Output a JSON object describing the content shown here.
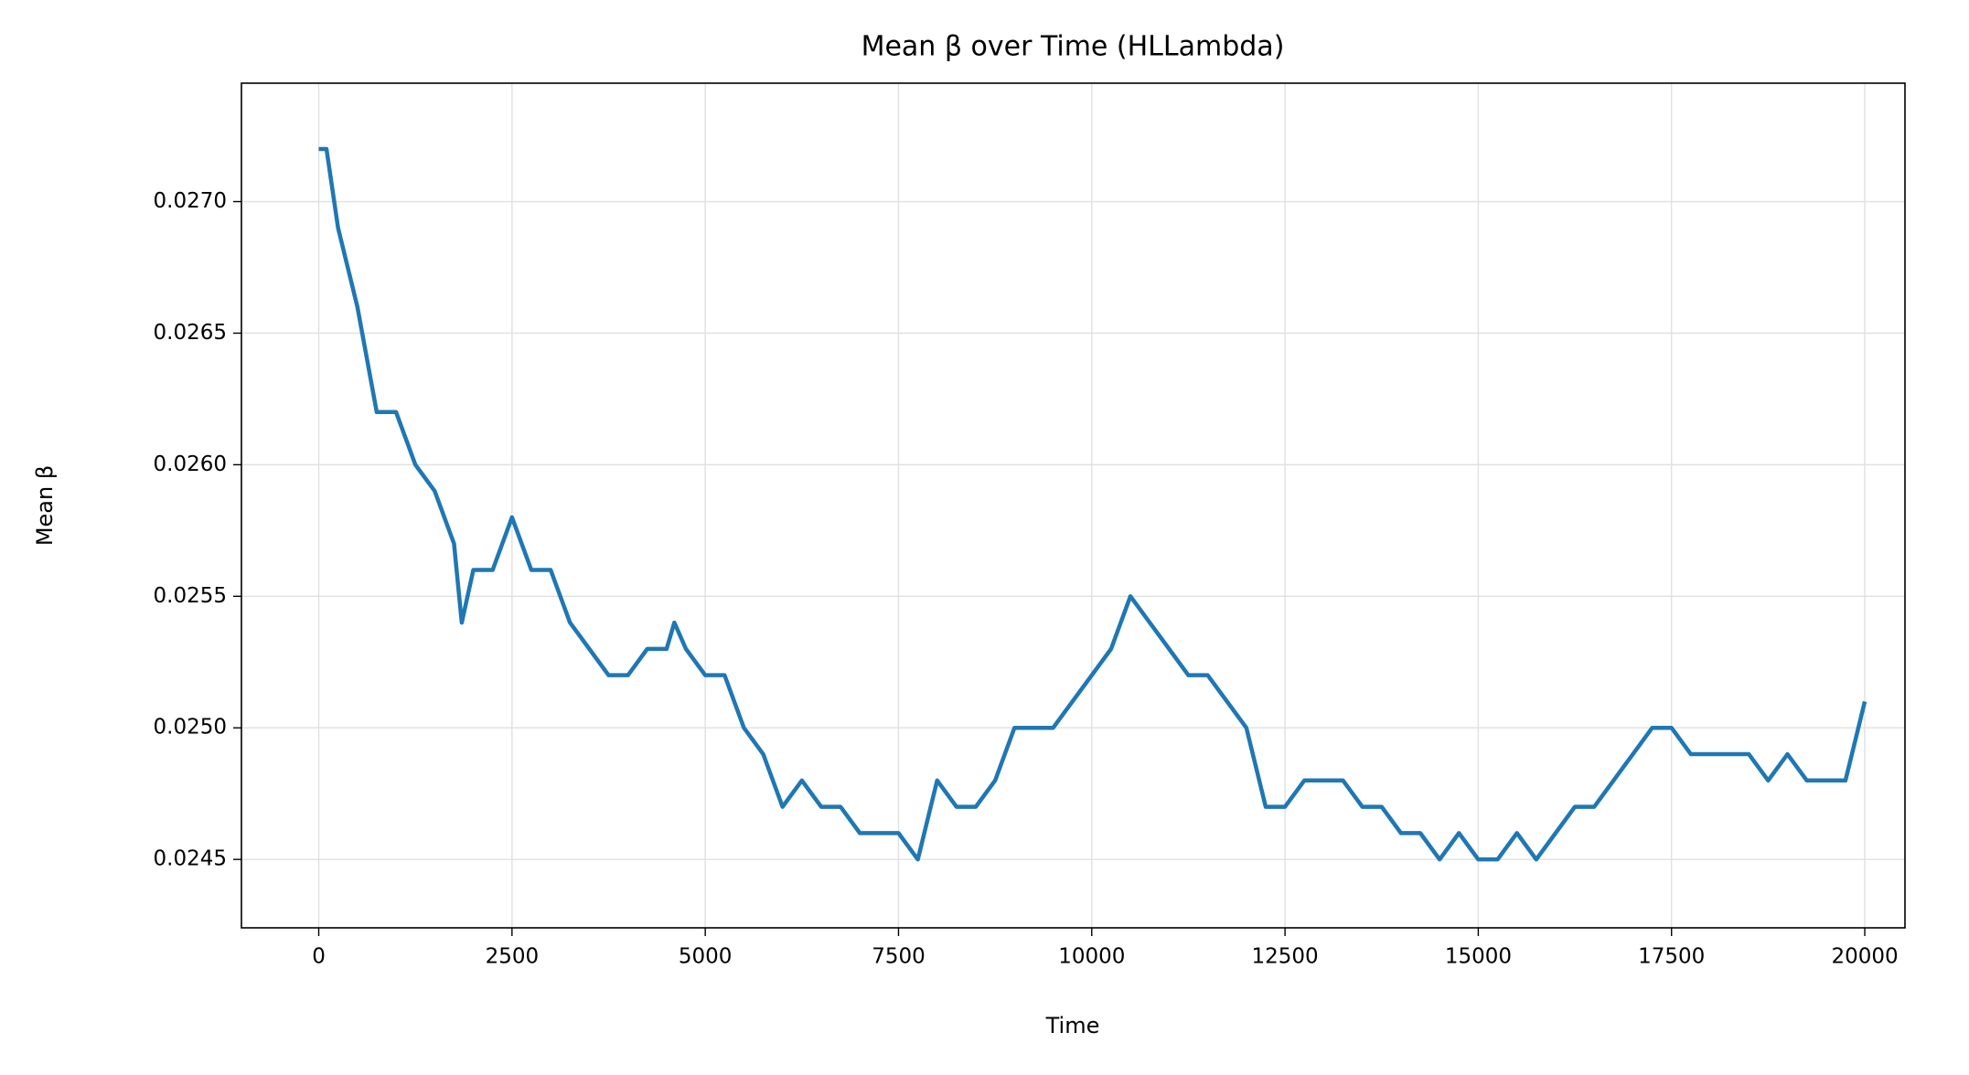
{
  "chart_data": {
    "type": "line",
    "title": "Mean β over Time (HLLambda)",
    "x_label": "Time",
    "y_label": "Mean β",
    "x": [
      0,
      100,
      250,
      500,
      750,
      1000,
      1250,
      1500,
      1750,
      1850,
      2000,
      2250,
      2500,
      2750,
      3000,
      3250,
      3500,
      3750,
      4000,
      4250,
      4500,
      4600,
      4750,
      5000,
      5250,
      5500,
      5750,
      6000,
      6250,
      6500,
      6750,
      7000,
      7250,
      7500,
      7750,
      8000,
      8250,
      8500,
      8750,
      9000,
      9250,
      9500,
      9750,
      10000,
      10250,
      10500,
      10750,
      11000,
      11250,
      11500,
      11750,
      12000,
      12250,
      12500,
      12750,
      13000,
      13250,
      13500,
      13750,
      14000,
      14250,
      14500,
      14750,
      15000,
      15250,
      15500,
      15750,
      16000,
      16250,
      16500,
      16750,
      17000,
      17250,
      17500,
      17750,
      18000,
      18250,
      18500,
      18750,
      19000,
      19250,
      19500,
      19750,
      20000
    ],
    "series": [
      {
        "name": "Mean β",
        "color": "#1f77b4",
        "values": [
          0.0272,
          0.0272,
          0.0269,
          0.0266,
          0.0262,
          0.0262,
          0.026,
          0.0259,
          0.0257,
          0.0254,
          0.0256,
          0.0256,
          0.0258,
          0.0256,
          0.0256,
          0.0254,
          0.0253,
          0.0252,
          0.0252,
          0.0253,
          0.0253,
          0.0254,
          0.0253,
          0.0252,
          0.0252,
          0.025,
          0.0249,
          0.0247,
          0.0248,
          0.0247,
          0.0247,
          0.0246,
          0.0246,
          0.0246,
          0.0245,
          0.0248,
          0.0247,
          0.0247,
          0.0248,
          0.025,
          0.025,
          0.025,
          0.0251,
          0.0252,
          0.0253,
          0.0255,
          0.0254,
          0.0253,
          0.0252,
          0.0252,
          0.0251,
          0.025,
          0.0247,
          0.0247,
          0.0248,
          0.0248,
          0.0248,
          0.0247,
          0.0247,
          0.0246,
          0.0246,
          0.0245,
          0.0246,
          0.0245,
          0.0245,
          0.0246,
          0.0245,
          0.0246,
          0.0247,
          0.0247,
          0.0248,
          0.0249,
          0.025,
          0.025,
          0.0249,
          0.0249,
          0.0249,
          0.0249,
          0.0248,
          0.0249,
          0.0248,
          0.0248,
          0.0248,
          0.0251
        ]
      }
    ],
    "xlim": [
      -1000,
      20520
    ],
    "ylim": [
      0.02424,
      0.02745
    ],
    "xticks": [
      0,
      2500,
      5000,
      7500,
      10000,
      12500,
      15000,
      17500,
      20000
    ],
    "yticks": [
      {
        "value": 0.0245,
        "label": "0.0245"
      },
      {
        "value": 0.025,
        "label": "0.0250"
      },
      {
        "value": 0.0255,
        "label": "0.0255"
      },
      {
        "value": 0.026,
        "label": "0.0260"
      },
      {
        "value": 0.0265,
        "label": "0.0265"
      },
      {
        "value": 0.027,
        "label": "0.0270"
      }
    ],
    "grid": true
  }
}
